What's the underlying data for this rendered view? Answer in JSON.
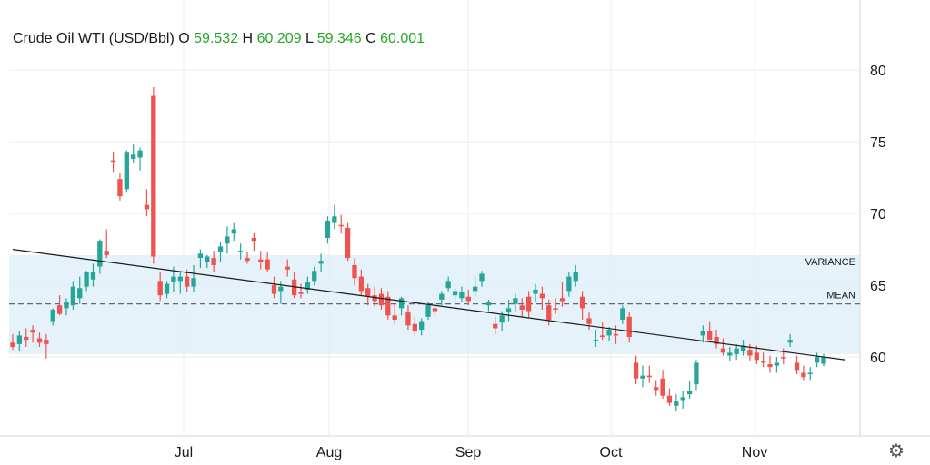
{
  "legend": {
    "title": "Crude Oil WTI (USD/Bbl)",
    "o_label": "O",
    "o_value": "59.532",
    "h_label": "H",
    "h_value": "60.209",
    "l_label": "L",
    "l_value": "59.346",
    "c_label": "C",
    "c_value": "60.001"
  },
  "settings": {
    "icon": "gear-icon",
    "glyph": "⚙"
  },
  "colors": {
    "up": "#26a69a",
    "down": "#ef5350",
    "band": "#ddeef8",
    "trend": "#1a1a1a",
    "mean": "#5a6b7d",
    "grid": "#eeeeee",
    "values": "#26a626"
  },
  "chart_data": {
    "type": "candlestick",
    "title": "Crude Oil WTI (USD/Bbl)",
    "x_ticks": [
      "Jul",
      "Aug",
      "Sep",
      "Oct",
      "Nov"
    ],
    "y_ticks": [
      60,
      65,
      70,
      75,
      80
    ],
    "ylim": [
      54.5,
      84.5
    ],
    "grid": true,
    "bands": [
      {
        "label": "VARIANCE",
        "from": 60.2,
        "to": 67.1
      }
    ],
    "lines": [
      {
        "label": "MEAN",
        "value": 63.7,
        "style": "dashed"
      }
    ],
    "trendline": {
      "start": 67.5,
      "end": 59.8
    },
    "candles": [
      [
        61.0,
        61.6,
        60.5,
        60.7
      ],
      [
        60.9,
        61.8,
        60.4,
        61.5
      ],
      [
        61.4,
        62.0,
        60.7,
        61.2
      ],
      [
        61.9,
        62.2,
        61.0,
        61.7
      ],
      [
        61.3,
        61.7,
        60.7,
        61.0
      ],
      [
        61.2,
        61.6,
        59.9,
        60.9
      ],
      [
        62.5,
        63.4,
        62.2,
        63.3
      ],
      [
        63.6,
        64.3,
        62.9,
        63.0
      ],
      [
        63.4,
        64.1,
        62.9,
        63.8
      ],
      [
        63.6,
        65.3,
        63.3,
        64.9
      ],
      [
        64.1,
        65.6,
        63.7,
        64.8
      ],
      [
        64.9,
        66.0,
        64.6,
        65.9
      ],
      [
        65.4,
        66.5,
        64.9,
        65.9
      ],
      [
        66.3,
        68.2,
        65.8,
        68.1
      ],
      [
        67.4,
        68.9,
        66.9,
        67.1
      ],
      [
        73.7,
        74.3,
        72.9,
        73.6
      ],
      [
        72.4,
        72.8,
        70.9,
        71.2
      ],
      [
        71.7,
        74.4,
        71.5,
        74.3
      ],
      [
        73.8,
        74.8,
        73.5,
        74.1
      ],
      [
        73.9,
        74.6,
        73.0,
        74.4
      ],
      [
        70.6,
        71.7,
        69.8,
        70.3
      ],
      [
        78.2,
        78.8,
        66.5,
        67.0
      ],
      [
        65.3,
        65.9,
        63.9,
        64.3
      ],
      [
        64.4,
        65.3,
        64.1,
        65.1
      ],
      [
        65.2,
        66.3,
        64.5,
        65.6
      ],
      [
        65.3,
        65.9,
        64.4,
        65.6
      ],
      [
        65.6,
        66.1,
        64.5,
        64.9
      ],
      [
        64.9,
        66.4,
        64.5,
        65.5
      ],
      [
        66.9,
        67.5,
        66.2,
        67.2
      ],
      [
        66.6,
        67.1,
        66.2,
        67.0
      ],
      [
        66.9,
        67.4,
        65.9,
        66.4
      ],
      [
        67.3,
        68.0,
        66.6,
        67.7
      ],
      [
        67.9,
        69.1,
        67.2,
        68.4
      ],
      [
        68.6,
        69.4,
        68.1,
        68.9
      ],
      [
        67.3,
        67.9,
        66.8,
        67.4
      ],
      [
        66.9,
        67.3,
        66.5,
        66.7
      ],
      [
        68.3,
        68.7,
        67.4,
        68.1
      ],
      [
        66.8,
        67.4,
        66.1,
        66.6
      ],
      [
        66.8,
        67.3,
        65.9,
        66.1
      ],
      [
        65.0,
        65.6,
        64.1,
        64.4
      ],
      [
        64.6,
        65.3,
        63.7,
        64.9
      ],
      [
        66.3,
        66.8,
        65.6,
        66.1
      ],
      [
        65.4,
        65.9,
        64.1,
        64.3
      ],
      [
        64.5,
        65.1,
        64.1,
        64.4
      ],
      [
        64.7,
        65.6,
        64.4,
        65.2
      ],
      [
        65.3,
        66.3,
        65.0,
        66.0
      ],
      [
        66.5,
        67.2,
        65.9,
        66.7
      ],
      [
        68.3,
        69.8,
        67.9,
        69.5
      ],
      [
        69.4,
        70.6,
        68.9,
        69.8
      ],
      [
        69.2,
        69.9,
        68.6,
        69.1
      ],
      [
        69.0,
        69.4,
        66.7,
        66.9
      ],
      [
        66.4,
        66.9,
        65.0,
        65.5
      ],
      [
        65.6,
        66.1,
        64.3,
        64.6
      ],
      [
        64.8,
        65.1,
        63.6,
        64.2
      ],
      [
        64.3,
        64.9,
        63.5,
        63.9
      ],
      [
        64.4,
        64.8,
        63.3,
        63.6
      ],
      [
        64.2,
        64.6,
        62.6,
        62.9
      ],
      [
        62.9,
        63.7,
        62.3,
        62.6
      ],
      [
        63.4,
        64.2,
        62.9,
        64.1
      ],
      [
        63.1,
        63.6,
        61.9,
        62.2
      ],
      [
        62.3,
        62.8,
        61.5,
        61.8
      ],
      [
        61.9,
        62.7,
        61.5,
        62.5
      ],
      [
        62.8,
        63.8,
        62.6,
        63.6
      ],
      [
        63.4,
        63.9,
        62.9,
        63.2
      ],
      [
        64.0,
        64.6,
        63.6,
        64.4
      ],
      [
        64.8,
        65.6,
        64.6,
        65.3
      ],
      [
        64.3,
        64.8,
        63.6,
        64.6
      ],
      [
        64.1,
        64.9,
        63.8,
        64.5
      ],
      [
        64.2,
        64.7,
        63.6,
        63.9
      ],
      [
        64.6,
        65.6,
        64.2,
        64.9
      ],
      [
        65.3,
        66.0,
        64.9,
        65.8
      ],
      [
        63.6,
        64.0,
        63.2,
        63.8
      ],
      [
        62.3,
        62.8,
        61.6,
        62.0
      ],
      [
        62.4,
        63.2,
        61.8,
        62.9
      ],
      [
        63.1,
        64.0,
        62.5,
        63.4
      ],
      [
        63.7,
        64.4,
        63.1,
        64.1
      ],
      [
        63.6,
        64.1,
        62.8,
        63.3
      ],
      [
        64.2,
        64.6,
        62.7,
        63.2
      ],
      [
        64.4,
        65.1,
        63.8,
        64.7
      ],
      [
        64.4,
        64.9,
        63.3,
        64.1
      ],
      [
        63.6,
        64.0,
        62.2,
        62.6
      ],
      [
        63.4,
        64.1,
        63.0,
        63.3
      ],
      [
        64.1,
        65.2,
        63.5,
        63.9
      ],
      [
        64.6,
        65.9,
        64.2,
        65.6
      ],
      [
        65.3,
        66.4,
        64.9,
        65.9
      ],
      [
        64.2,
        64.6,
        62.6,
        63.4
      ],
      [
        62.7,
        63.1,
        61.9,
        62.3
      ],
      [
        61.1,
        61.9,
        60.7,
        61.2
      ],
      [
        61.5,
        62.4,
        61.2,
        61.4
      ],
      [
        61.5,
        62.1,
        61.1,
        61.9
      ],
      [
        61.6,
        62.2,
        60.9,
        61.5
      ],
      [
        62.6,
        63.6,
        62.3,
        63.4
      ],
      [
        62.8,
        63.1,
        61.0,
        61.4
      ],
      [
        59.6,
        60.1,
        58.1,
        58.5
      ],
      [
        58.5,
        59.4,
        57.9,
        58.7
      ],
      [
        58.7,
        59.4,
        58.2,
        58.6
      ],
      [
        57.9,
        58.4,
        57.3,
        57.7
      ],
      [
        58.5,
        59.1,
        57.1,
        57.3
      ],
      [
        57.3,
        57.8,
        56.6,
        56.8
      ],
      [
        56.6,
        57.4,
        56.2,
        56.9
      ],
      [
        57.0,
        57.6,
        56.4,
        57.2
      ],
      [
        57.4,
        58.3,
        57.1,
        57.6
      ],
      [
        58.1,
        59.8,
        57.7,
        59.6
      ],
      [
        61.5,
        62.2,
        61.0,
        61.8
      ],
      [
        61.8,
        62.5,
        61.3,
        61.2
      ],
      [
        61.4,
        61.9,
        60.6,
        60.9
      ],
      [
        60.6,
        61.3,
        60.1,
        60.3
      ],
      [
        60.1,
        60.7,
        59.7,
        60.3
      ],
      [
        60.2,
        60.9,
        59.8,
        60.6
      ],
      [
        60.4,
        61.2,
        60.1,
        60.8
      ],
      [
        60.5,
        60.9,
        59.7,
        60.1
      ],
      [
        60.3,
        60.8,
        59.5,
        59.8
      ],
      [
        59.7,
        60.3,
        59.3,
        59.6
      ],
      [
        59.5,
        60.1,
        58.9,
        59.3
      ],
      [
        59.4,
        60.0,
        58.9,
        59.6
      ],
      [
        60.0,
        60.6,
        59.5,
        59.9
      ],
      [
        61.0,
        61.6,
        60.7,
        61.2
      ],
      [
        59.6,
        60.1,
        58.8,
        59.1
      ],
      [
        58.9,
        59.4,
        58.4,
        58.6
      ],
      [
        58.8,
        59.3,
        58.4,
        58.9
      ],
      [
        59.6,
        60.3,
        59.3,
        60.0
      ],
      [
        59.532,
        60.209,
        59.346,
        60.001
      ]
    ]
  }
}
